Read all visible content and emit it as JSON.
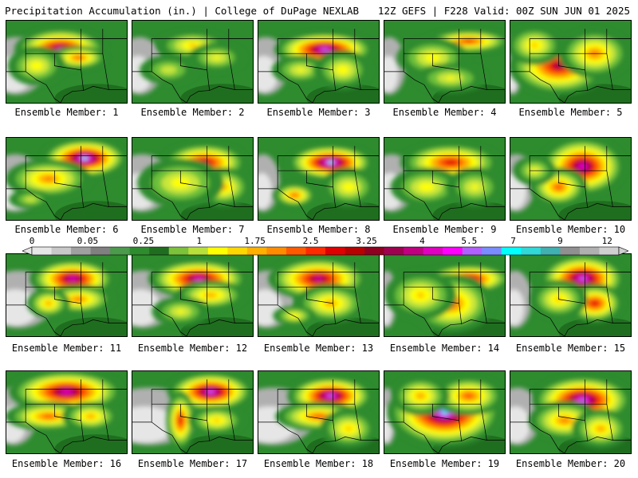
{
  "header": {
    "left": "Precipitation Accumulation (in.) | College of DuPage NEXLAB",
    "right": "12Z GEFS | F228 Valid: 00Z SUN JUN 01 2025"
  },
  "panels": [
    {
      "caption": "Ensemble Member: 1",
      "blobs": [
        [
          0.45,
          0.35,
          0.32,
          0.22,
          0.85
        ],
        [
          0.6,
          0.45,
          0.2,
          0.12,
          0.6
        ],
        [
          0.25,
          0.55,
          0.2,
          0.2,
          0.4
        ]
      ],
      "dry": 0.2
    },
    {
      "caption": "Ensemble Member: 2",
      "blobs": [
        [
          0.5,
          0.3,
          0.25,
          0.15,
          0.45
        ],
        [
          0.7,
          0.45,
          0.2,
          0.15,
          0.35
        ],
        [
          0.3,
          0.6,
          0.2,
          0.15,
          0.3
        ]
      ],
      "dry": 0.15
    },
    {
      "caption": "Ensemble Member: 3",
      "blobs": [
        [
          0.55,
          0.35,
          0.35,
          0.18,
          0.9
        ],
        [
          0.35,
          0.6,
          0.2,
          0.15,
          0.35
        ],
        [
          0.7,
          0.6,
          0.2,
          0.2,
          0.4
        ]
      ],
      "dry": 0.15
    },
    {
      "caption": "Ensemble Member: 4",
      "blobs": [
        [
          0.7,
          0.25,
          0.3,
          0.12,
          0.65
        ],
        [
          0.4,
          0.45,
          0.25,
          0.2,
          0.4
        ],
        [
          0.55,
          0.7,
          0.25,
          0.15,
          0.35
        ]
      ],
      "dry": 0.1
    },
    {
      "caption": "Ensemble Member: 5",
      "blobs": [
        [
          0.4,
          0.55,
          0.35,
          0.3,
          0.75
        ],
        [
          0.7,
          0.4,
          0.25,
          0.25,
          0.55
        ],
        [
          0.2,
          0.3,
          0.2,
          0.2,
          0.45
        ]
      ],
      "dry": 0.05
    },
    {
      "caption": "Ensemble Member: 6",
      "blobs": [
        [
          0.65,
          0.25,
          0.3,
          0.2,
          0.95
        ],
        [
          0.35,
          0.5,
          0.3,
          0.2,
          0.55
        ],
        [
          0.2,
          0.75,
          0.15,
          0.1,
          0.3
        ]
      ],
      "dry": 0.18
    },
    {
      "caption": "Ensemble Member: 7",
      "blobs": [
        [
          0.6,
          0.3,
          0.3,
          0.2,
          0.75
        ],
        [
          0.75,
          0.6,
          0.2,
          0.2,
          0.5
        ],
        [
          0.4,
          0.55,
          0.3,
          0.25,
          0.4
        ]
      ],
      "dry": 0.2
    },
    {
      "caption": "Ensemble Member: 8",
      "blobs": [
        [
          0.6,
          0.3,
          0.3,
          0.18,
          0.95
        ],
        [
          0.3,
          0.7,
          0.15,
          0.12,
          0.6
        ],
        [
          0.75,
          0.6,
          0.2,
          0.2,
          0.4
        ]
      ],
      "dry": 0.1
    },
    {
      "caption": "Ensemble Member: 9",
      "blobs": [
        [
          0.55,
          0.3,
          0.35,
          0.2,
          0.7
        ],
        [
          0.35,
          0.6,
          0.25,
          0.2,
          0.4
        ],
        [
          0.75,
          0.6,
          0.2,
          0.2,
          0.35
        ]
      ],
      "dry": 0.15
    },
    {
      "caption": "Ensemble Member: 10",
      "blobs": [
        [
          0.6,
          0.35,
          0.3,
          0.3,
          0.85
        ],
        [
          0.4,
          0.6,
          0.2,
          0.2,
          0.6
        ],
        [
          0.2,
          0.4,
          0.15,
          0.15,
          0.35
        ]
      ],
      "dry": 0.12
    },
    {
      "caption": "Ensemble Member: 11",
      "blobs": [
        [
          0.55,
          0.3,
          0.3,
          0.2,
          0.85
        ],
        [
          0.6,
          0.55,
          0.25,
          0.15,
          0.55
        ],
        [
          0.35,
          0.6,
          0.15,
          0.15,
          0.5
        ]
      ],
      "dry": 0.25
    },
    {
      "caption": "Ensemble Member: 12",
      "blobs": [
        [
          0.55,
          0.3,
          0.35,
          0.2,
          0.85
        ],
        [
          0.65,
          0.5,
          0.25,
          0.15,
          0.5
        ],
        [
          0.4,
          0.7,
          0.2,
          0.15,
          0.35
        ]
      ],
      "dry": 0.22
    },
    {
      "caption": "Ensemble Member: 13",
      "blobs": [
        [
          0.5,
          0.3,
          0.35,
          0.22,
          0.8
        ],
        [
          0.6,
          0.6,
          0.25,
          0.2,
          0.5
        ],
        [
          0.3,
          0.75,
          0.15,
          0.1,
          0.4
        ]
      ],
      "dry": 0.18
    },
    {
      "caption": "Ensemble Member: 14",
      "blobs": [
        [
          0.7,
          0.3,
          0.3,
          0.15,
          0.8
        ],
        [
          0.55,
          0.6,
          0.3,
          0.3,
          0.6
        ],
        [
          0.3,
          0.5,
          0.25,
          0.25,
          0.45
        ]
      ],
      "dry": 0.05
    },
    {
      "caption": "Ensemble Member: 15",
      "blobs": [
        [
          0.6,
          0.3,
          0.3,
          0.25,
          0.9
        ],
        [
          0.7,
          0.6,
          0.2,
          0.2,
          0.7
        ],
        [
          0.4,
          0.55,
          0.2,
          0.2,
          0.45
        ]
      ],
      "dry": 0.1
    },
    {
      "caption": "Ensemble Member: 16",
      "blobs": [
        [
          0.5,
          0.25,
          0.4,
          0.22,
          0.85
        ],
        [
          0.35,
          0.55,
          0.3,
          0.15,
          0.6
        ],
        [
          0.7,
          0.55,
          0.2,
          0.15,
          0.5
        ]
      ],
      "dry": 0.15
    },
    {
      "caption": "Ensemble Member: 17",
      "blobs": [
        [
          0.65,
          0.25,
          0.3,
          0.2,
          0.9
        ],
        [
          0.4,
          0.6,
          0.1,
          0.3,
          0.7
        ],
        [
          0.7,
          0.6,
          0.2,
          0.15,
          0.45
        ]
      ],
      "dry": 0.35
    },
    {
      "caption": "Ensemble Member: 18",
      "blobs": [
        [
          0.6,
          0.3,
          0.3,
          0.2,
          0.9
        ],
        [
          0.5,
          0.55,
          0.3,
          0.15,
          0.6
        ],
        [
          0.75,
          0.7,
          0.2,
          0.2,
          0.45
        ]
      ],
      "dry": 0.3
    },
    {
      "caption": "Ensemble Member: 19",
      "blobs": [
        [
          0.5,
          0.5,
          0.4,
          0.35,
          0.95
        ],
        [
          0.7,
          0.3,
          0.25,
          0.2,
          0.6
        ],
        [
          0.3,
          0.3,
          0.2,
          0.2,
          0.5
        ]
      ],
      "dry": 0.05
    },
    {
      "caption": "Ensemble Member: 20",
      "blobs": [
        [
          0.6,
          0.35,
          0.35,
          0.25,
          0.9
        ],
        [
          0.45,
          0.6,
          0.25,
          0.2,
          0.55
        ],
        [
          0.75,
          0.7,
          0.2,
          0.2,
          0.5
        ]
      ],
      "dry": 0.15
    }
  ],
  "legend": {
    "colors": [
      "#e6e6e6",
      "#c8c8c8",
      "#a0a0a0",
      "#808080",
      "#4c9a4c",
      "#2e8b2e",
      "#1f6e1f",
      "#7cc23a",
      "#b8e03a",
      "#ffff00",
      "#ffd700",
      "#ffb000",
      "#ff8c00",
      "#ff5a00",
      "#ff2a00",
      "#e00000",
      "#b80000",
      "#900020",
      "#a00050",
      "#c00080",
      "#e000c0",
      "#ff00ff",
      "#b060ff",
      "#7a8cff",
      "#00ffff",
      "#30d8d8",
      "#40b0b0",
      "#909090",
      "#b0b0b0",
      "#d0d0d0"
    ],
    "ticks": [
      {
        "label": "0",
        "pos": 0.0
      },
      {
        "label": "0.05",
        "pos": 0.095
      },
      {
        "label": "0.25",
        "pos": 0.19
      },
      {
        "label": "1",
        "pos": 0.285
      },
      {
        "label": "1.75",
        "pos": 0.38
      },
      {
        "label": "2.5",
        "pos": 0.475
      },
      {
        "label": "3.25",
        "pos": 0.57
      },
      {
        "label": "4",
        "pos": 0.665
      },
      {
        "label": "5.5",
        "pos": 0.745
      },
      {
        "label": "7",
        "pos": 0.82
      },
      {
        "label": "9",
        "pos": 0.9
      },
      {
        "label": "12",
        "pos": 0.98
      }
    ]
  }
}
